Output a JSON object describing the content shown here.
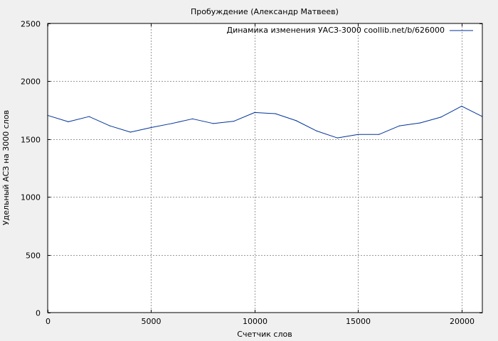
{
  "chart_data": {
    "type": "line",
    "title": "Пробуждение (Александр Матвеев)",
    "xlabel": "Счетчик слов",
    "ylabel": "Удельный АСЗ на 3000 слов",
    "xlim": [
      0,
      21000
    ],
    "ylim": [
      0,
      2500
    ],
    "x_ticks": [
      0,
      5000,
      10000,
      15000,
      20000
    ],
    "y_ticks": [
      0,
      500,
      1000,
      1500,
      2000,
      2500
    ],
    "x_tick_labels": [
      "0",
      "5000",
      "10000",
      "15000",
      "20000"
    ],
    "y_tick_labels": [
      "0",
      "500",
      "1000",
      "1500",
      "2000",
      "2500"
    ],
    "grid": true,
    "legend_position": "top-right",
    "series": [
      {
        "name": "Динамика изменения УАСЗ-3000 coollib.net/b/626000",
        "color": "#003399",
        "x": [
          0,
          1000,
          2000,
          3000,
          4000,
          5000,
          6000,
          7000,
          8000,
          9000,
          10000,
          11000,
          12000,
          13000,
          14000,
          15000,
          16000,
          17000,
          18000,
          19000,
          20000,
          21000
        ],
        "y": [
          1705,
          1650,
          1695,
          1615,
          1560,
          1600,
          1635,
          1675,
          1635,
          1655,
          1730,
          1720,
          1660,
          1570,
          1510,
          1540,
          1540,
          1615,
          1640,
          1690,
          1785,
          1695
        ]
      }
    ]
  }
}
